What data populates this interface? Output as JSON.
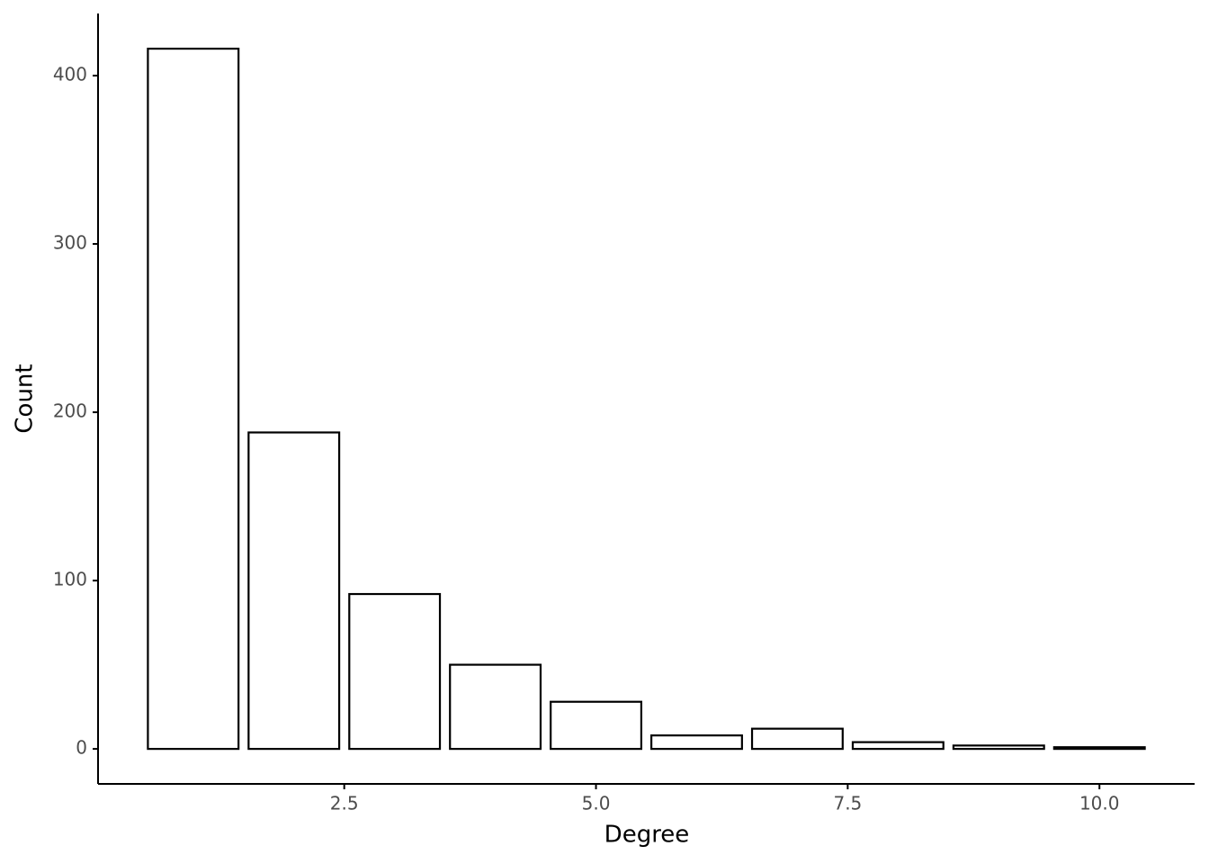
{
  "chart_data": {
    "type": "bar",
    "x_label": "Degree",
    "y_label": "Count",
    "x": [
      1,
      2,
      3,
      4,
      5,
      6,
      7,
      8,
      9,
      10
    ],
    "values": [
      416,
      188,
      92,
      50,
      28,
      8,
      12,
      4,
      2,
      1
    ],
    "fill": "#ffffff",
    "color": "#000000",
    "xlim": [
      0.055,
      10.945
    ],
    "xticks": [
      2.5,
      {
        "value": 5,
        "label": "5.0"
      },
      7.5,
      {
        "value": 10,
        "label": "10.0"
      }
    ],
    "ylim": [
      -20.8,
      436.9
    ],
    "yticks": [
      0,
      100,
      200,
      300,
      400
    ],
    "grid": false
  }
}
